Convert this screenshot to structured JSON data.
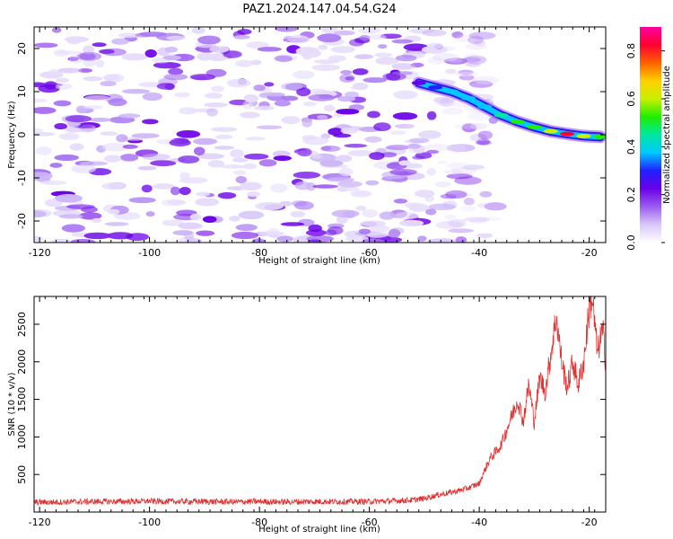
{
  "title": "PAZ1.2024.147.04.54.G24",
  "colors": {
    "snr_line": "#e03030",
    "colormap": [
      "#ffffff",
      "#d8c8f8",
      "#9a5cf0",
      "#6a00e8",
      "#2020ff",
      "#00c8ff",
      "#00e8a0",
      "#20ee00",
      "#c8f000",
      "#ffd000",
      "#ff6000",
      "#ff0030",
      "#ff00a0"
    ]
  },
  "chart_data": [
    {
      "type": "heatmap",
      "xlabel": "Height of straight line (km)",
      "ylabel": "Frequency (Hz)",
      "xlim": [
        -121,
        -17
      ],
      "ylim": [
        -25,
        25
      ],
      "xticks": [
        -120,
        -100,
        -80,
        -60,
        -40,
        -20
      ],
      "yticks": [
        -20,
        -10,
        0,
        10,
        20
      ],
      "colorbar": {
        "label": "Normalized spectral amplitude",
        "range": [
          0.0,
          0.9
        ],
        "ticks": [
          "0.0",
          "0.2",
          "0.4",
          "0.6",
          "0.8"
        ],
        "tick_values": [
          0.0,
          0.2,
          0.4,
          0.6,
          0.8
        ]
      },
      "noise_region": {
        "x_range": [
          -121,
          -41
        ],
        "level": 0.15
      },
      "ridge": [
        {
          "x": -51,
          "y": 12,
          "value": 0.25
        },
        {
          "x": -48,
          "y": 11,
          "value": 0.3
        },
        {
          "x": -45,
          "y": 10,
          "value": 0.35
        },
        {
          "x": -42,
          "y": 8.5,
          "value": 0.35
        },
        {
          "x": -39,
          "y": 6.5,
          "value": 0.4
        },
        {
          "x": -36,
          "y": 4.5,
          "value": 0.45
        },
        {
          "x": -33,
          "y": 3,
          "value": 0.5
        },
        {
          "x": -30,
          "y": 1.8,
          "value": 0.55
        },
        {
          "x": -27,
          "y": 0.8,
          "value": 0.6
        },
        {
          "x": -24,
          "y": 0.2,
          "value": 0.8
        },
        {
          "x": -21,
          "y": -0.3,
          "value": 0.6
        },
        {
          "x": -18,
          "y": -0.5,
          "value": 0.55
        }
      ]
    },
    {
      "type": "line",
      "xlabel": "Height of straight line (km)",
      "ylabel": "SNR (10 * v/v)",
      "xlim": [
        -121,
        -17
      ],
      "ylim": [
        0,
        2870
      ],
      "xticks": [
        -120,
        -100,
        -80,
        -60,
        -40,
        -20
      ],
      "yticks": [
        500,
        1000,
        1500,
        2000,
        2500
      ],
      "series": [
        {
          "x": [
            -121,
            -115,
            -110,
            -105,
            -100,
            -95,
            -90,
            -85,
            -80,
            -75,
            -70,
            -65,
            -60,
            -55,
            -52,
            -50,
            -48,
            -46,
            -44,
            -42,
            -41,
            -40,
            -39,
            -38,
            -37,
            -36,
            -35,
            -34,
            -33,
            -32,
            -31,
            -30,
            -29,
            -28,
            -27,
            -26,
            -25,
            -24,
            -23,
            -22,
            -21,
            -20,
            -19.5,
            -19,
            -18.5,
            -18,
            -17.5,
            -17
          ],
          "y": [
            130,
            135,
            140,
            140,
            145,
            140,
            140,
            135,
            140,
            135,
            140,
            140,
            140,
            150,
            160,
            180,
            220,
            250,
            280,
            320,
            350,
            380,
            560,
            720,
            800,
            900,
            1100,
            1300,
            1500,
            1200,
            1700,
            1200,
            1800,
            1600,
            2100,
            2600,
            2000,
            1650,
            2000,
            1700,
            2000,
            2700,
            2870,
            2500,
            2100,
            2300,
            2400,
            2000
          ]
        }
      ]
    }
  ]
}
